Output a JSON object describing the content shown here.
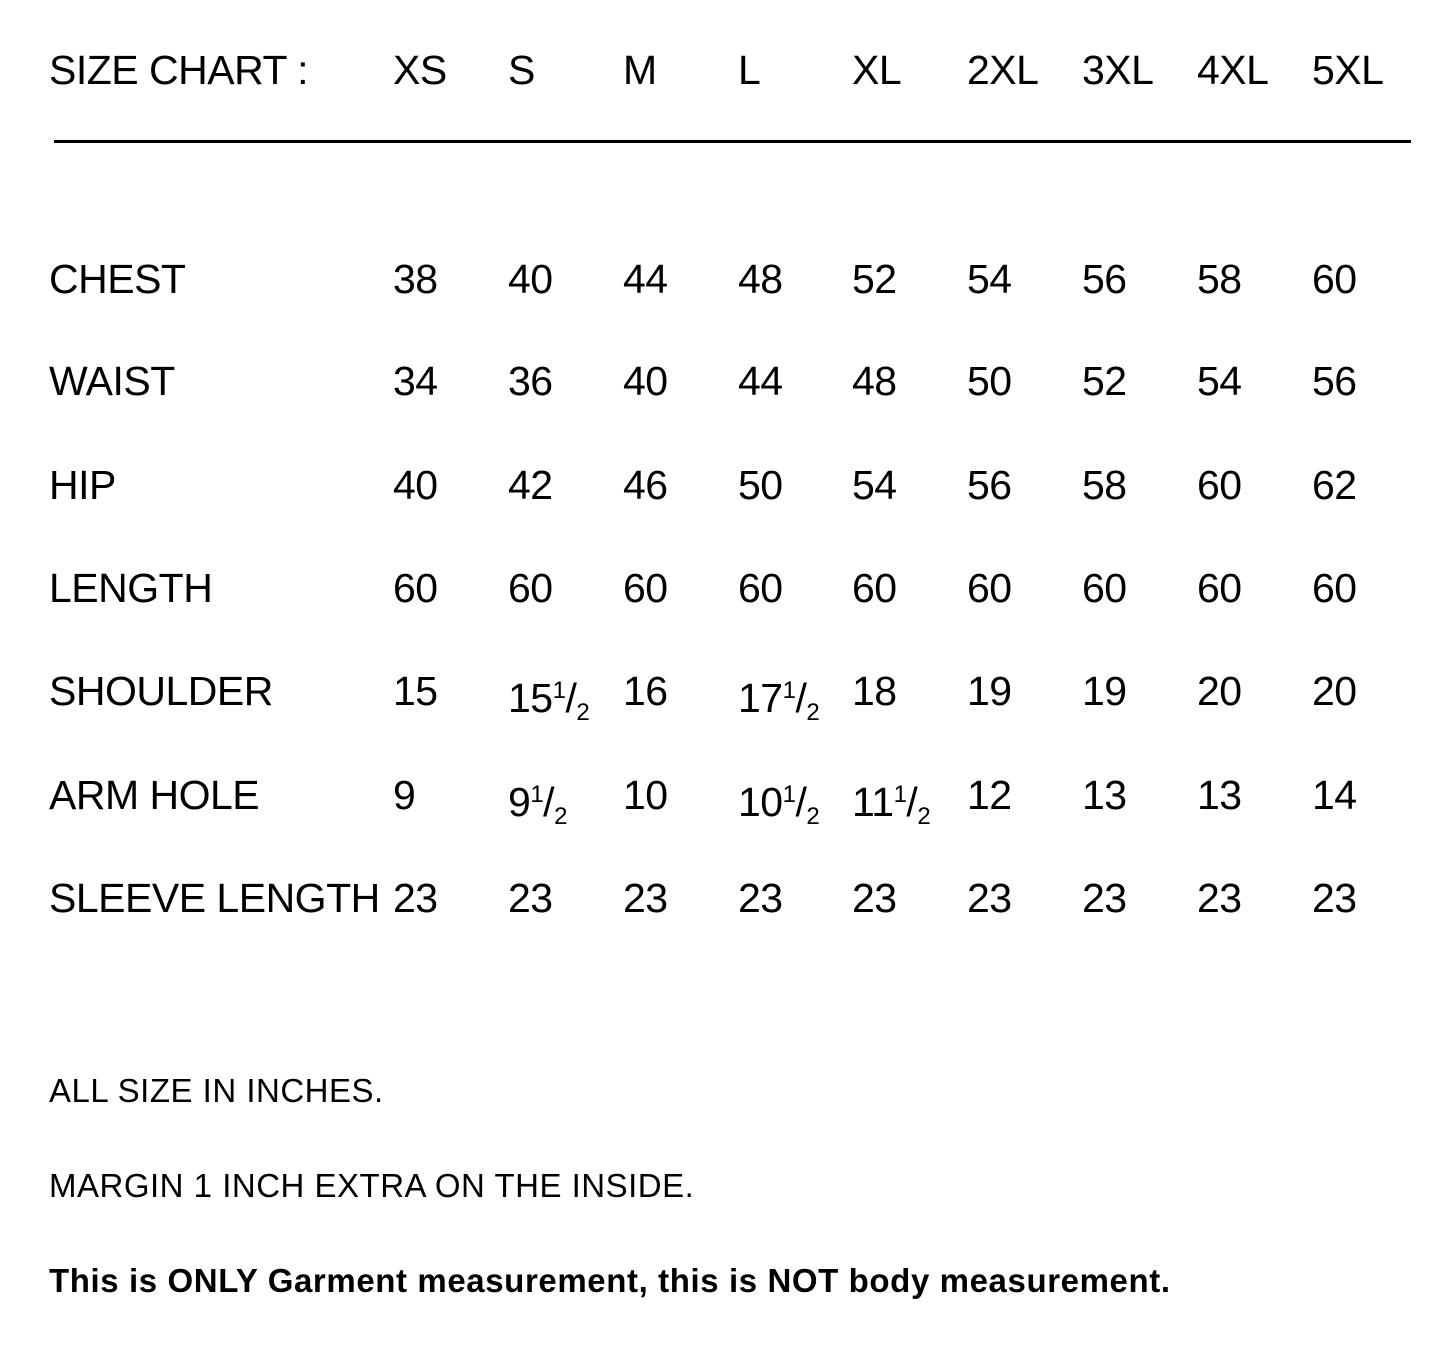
{
  "header": {
    "title": "SIZE CHART :",
    "sizes": [
      "XS",
      "S",
      "M",
      "L",
      "XL",
      "2XL",
      "3XL",
      "4XL",
      "5XL"
    ]
  },
  "rows": [
    {
      "label": "CHEST",
      "values": [
        "38",
        "40",
        "44",
        "48",
        "52",
        "54",
        "56",
        "58",
        "60"
      ]
    },
    {
      "label": "WAIST",
      "values": [
        "34",
        "36",
        "40",
        "44",
        "48",
        "50",
        "52",
        "54",
        "56"
      ]
    },
    {
      "label": "HIP",
      "values": [
        "40",
        "42",
        "46",
        "50",
        "54",
        "56",
        "58",
        "60",
        "62"
      ]
    },
    {
      "label": "LENGTH",
      "values": [
        "60",
        "60",
        "60",
        "60",
        "60",
        "60",
        "60",
        "60",
        "60"
      ]
    },
    {
      "label": "SHOULDER",
      "values": [
        "15",
        "15 1/2",
        "16",
        "17 1/2",
        "18",
        "19",
        "19",
        "20",
        "20"
      ]
    },
    {
      "label": "ARM HOLE",
      "values": [
        "9",
        "9 1/2",
        "10",
        "10 1/2",
        "11 1/2",
        "12",
        "13",
        "13",
        "14"
      ]
    },
    {
      "label": "SLEEVE LENGTH",
      "values": [
        "23",
        "23",
        "23",
        "23",
        "23",
        "23",
        "23",
        "23",
        "23"
      ]
    }
  ],
  "notes": {
    "units": "ALL SIZE IN INCHES.",
    "margin": "MARGIN 1 INCH EXTRA ON THE INSIDE.",
    "disclaimer": "This is ONLY Garment measurement, this is NOT body measurement."
  }
}
